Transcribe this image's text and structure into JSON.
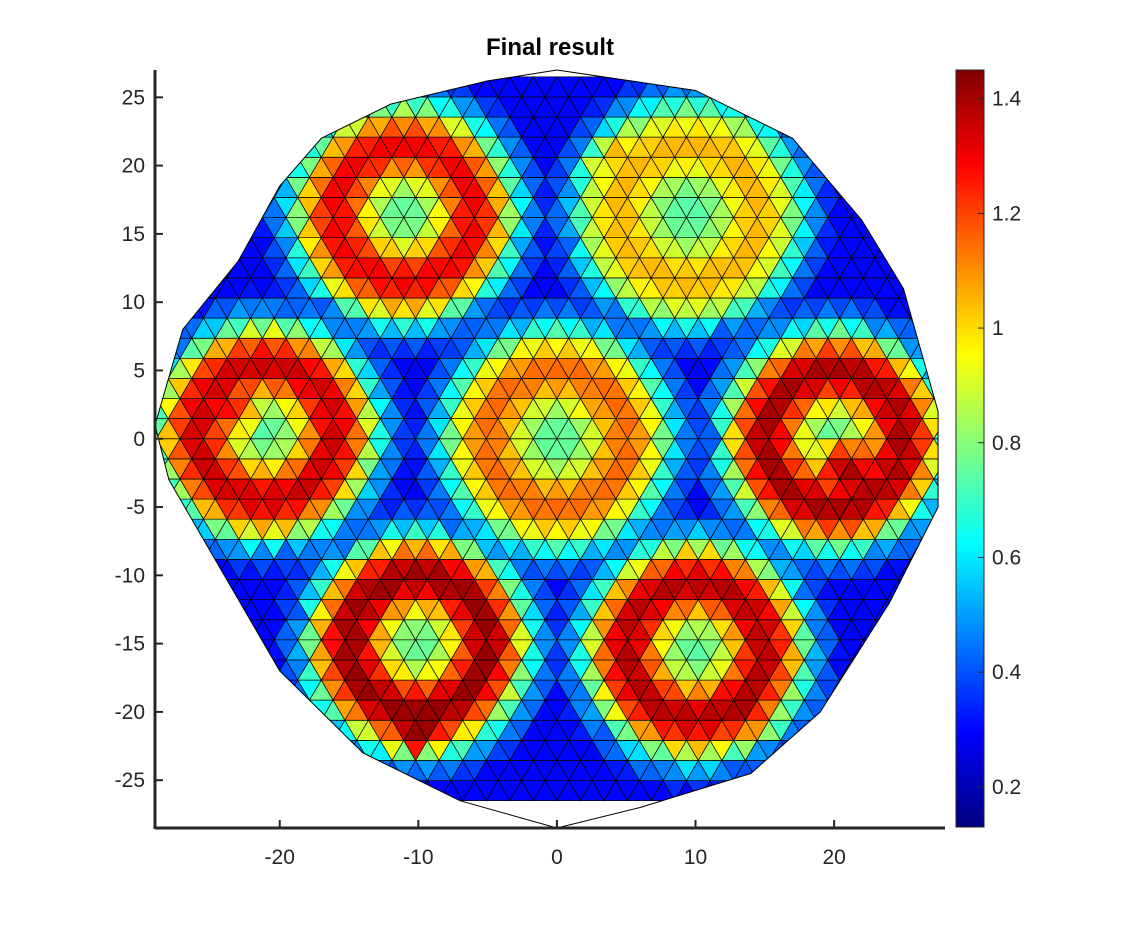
{
  "chart_data": {
    "type": "heatmap",
    "subtype": "triangular-mesh",
    "title": "Final result",
    "xlabel": "",
    "ylabel": "",
    "xlim": [
      -29,
      28
    ],
    "ylim": [
      -28.5,
      27
    ],
    "xticks": [
      "-20",
      "-10",
      "0",
      "10",
      "20"
    ],
    "xtick_values": [
      -20,
      -10,
      0,
      10,
      20
    ],
    "yticks": [
      "25",
      "20",
      "15",
      "10",
      "5",
      "0",
      "-5",
      "-10",
      "-15",
      "-20",
      "-25"
    ],
    "ytick_values": [
      25,
      20,
      15,
      10,
      5,
      0,
      -5,
      -10,
      -15,
      -20,
      -25
    ],
    "colorbar": {
      "colormap": "jet",
      "clim": [
        0.13,
        1.45
      ],
      "ticks": [
        "0.2",
        "0.4",
        "0.6",
        "0.8",
        "1",
        "1.2",
        "1.4"
      ],
      "tick_values": [
        0.2,
        0.4,
        0.6,
        0.8,
        1.0,
        1.2,
        1.4
      ]
    },
    "grid": false,
    "background_value": 0.3,
    "domain_boundary": [
      [
        0,
        27.0
      ],
      [
        10,
        25.5
      ],
      [
        17,
        22
      ],
      [
        22,
        16
      ],
      [
        25,
        11
      ],
      [
        27.5,
        2
      ],
      [
        27.5,
        -5
      ],
      [
        24,
        -12
      ],
      [
        19,
        -20
      ],
      [
        14,
        -24.5
      ],
      [
        6,
        -27
      ],
      [
        0,
        -28.5
      ],
      [
        -7,
        -26.5
      ],
      [
        -14,
        -23
      ],
      [
        -20,
        -17
      ],
      [
        -24,
        -10
      ],
      [
        -28,
        -3
      ],
      [
        -29,
        1
      ],
      [
        -27,
        8
      ],
      [
        -23,
        13
      ],
      [
        -20,
        18.5
      ],
      [
        -17,
        22
      ],
      [
        -12,
        24.5
      ],
      [
        -5,
        26.2
      ]
    ],
    "regions": [
      {
        "center": [
          -11,
          16.5
        ],
        "radius": 9.0,
        "peak": 1.3,
        "hotspot": [
          -16,
          17.5
        ],
        "hot_value": 1.25
      },
      {
        "center": [
          9.5,
          16.5
        ],
        "radius": 9.0,
        "peak": 1.05,
        "hotspot": [
          4,
          21
        ],
        "hot_value": 1.05
      },
      {
        "center": [
          -21,
          0.5
        ],
        "radius": 9.0,
        "peak": 1.35,
        "hotspot": [
          -24,
          2.5
        ],
        "hot_value": 1.3
      },
      {
        "center": [
          0,
          0
        ],
        "radius": 9.0,
        "peak": 1.15,
        "hotspot": [
          3,
          3
        ],
        "hot_value": 1.1
      },
      {
        "center": [
          20,
          0
        ],
        "radius": 9.0,
        "peak": 1.4,
        "hotspot": [
          21,
          -2.5
        ],
        "hot_value": 1.4
      },
      {
        "center": [
          -10,
          -15
        ],
        "radius": 9.0,
        "peak": 1.42,
        "hotspot": [
          -10,
          -21
        ],
        "hot_value": 1.45
      },
      {
        "center": [
          10,
          -15.5
        ],
        "radius": 9.0,
        "peak": 1.38,
        "hotspot": [
          13,
          -19.5
        ],
        "hot_value": 1.42
      }
    ]
  }
}
